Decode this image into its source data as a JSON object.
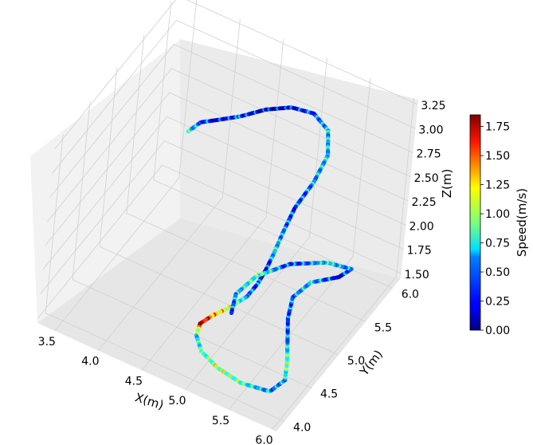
{
  "chart_data": {
    "type": "scatter",
    "projection": "3d",
    "xlabel": "X(m)",
    "ylabel": "Y(m)",
    "zlabel": "Z(m)",
    "xlim": [
      3.3,
      6.05
    ],
    "ylim": [
      3.85,
      6.15
    ],
    "zlim": [
      1.45,
      3.3
    ],
    "x_ticks": [
      "3.5",
      "4.0",
      "4.5",
      "5.0",
      "5.5",
      "6.0"
    ],
    "y_ticks": [
      "4.0",
      "4.5",
      "5.0",
      "5.5",
      "6.0"
    ],
    "z_ticks": [
      "1.50",
      "1.75",
      "2.00",
      "2.25",
      "2.50",
      "2.75",
      "3.00",
      "3.25"
    ],
    "grid": true,
    "colormap": "jet",
    "colorbar": {
      "label": "Speed(m/s)",
      "range": [
        0.0,
        1.85
      ],
      "ticks": [
        "0.00",
        "0.25",
        "0.50",
        "0.75",
        "1.00",
        "1.25",
        "1.50",
        "1.75"
      ]
    },
    "series": [
      {
        "points": [
          {
            "x": 4.1,
            "y": 5.1,
            "z": 2.9,
            "speed": 0.7
          },
          {
            "x": 4.2,
            "y": 5.15,
            "z": 3.0,
            "speed": 0.4
          },
          {
            "x": 4.35,
            "y": 5.2,
            "z": 3.05,
            "speed": 0.2
          },
          {
            "x": 4.55,
            "y": 5.3,
            "z": 3.1,
            "speed": 0.3
          },
          {
            "x": 4.75,
            "y": 5.45,
            "z": 3.15,
            "speed": 0.15
          },
          {
            "x": 4.95,
            "y": 5.6,
            "z": 3.15,
            "speed": 0.2
          },
          {
            "x": 5.15,
            "y": 5.7,
            "z": 3.1,
            "speed": 0.4
          },
          {
            "x": 5.3,
            "y": 5.75,
            "z": 2.95,
            "speed": 0.5
          },
          {
            "x": 5.35,
            "y": 5.7,
            "z": 2.75,
            "speed": 0.6
          },
          {
            "x": 5.3,
            "y": 5.55,
            "z": 2.55,
            "speed": 0.5
          },
          {
            "x": 5.2,
            "y": 5.4,
            "z": 2.35,
            "speed": 0.3
          },
          {
            "x": 5.15,
            "y": 5.3,
            "z": 2.15,
            "speed": 0.4
          },
          {
            "x": 5.1,
            "y": 5.25,
            "z": 1.95,
            "speed": 0.6
          },
          {
            "x": 5.05,
            "y": 5.2,
            "z": 1.78,
            "speed": 0.2
          },
          {
            "x": 5.0,
            "y": 5.15,
            "z": 1.65,
            "speed": 0.3
          },
          {
            "x": 4.95,
            "y": 5.05,
            "z": 1.57,
            "speed": 0.5
          },
          {
            "x": 4.85,
            "y": 4.9,
            "z": 1.52,
            "speed": 1.0
          },
          {
            "x": 4.75,
            "y": 4.75,
            "z": 1.5,
            "speed": 1.3
          },
          {
            "x": 4.7,
            "y": 4.6,
            "z": 1.5,
            "speed": 1.8
          },
          {
            "x": 4.75,
            "y": 4.45,
            "z": 1.5,
            "speed": 0.6
          },
          {
            "x": 4.9,
            "y": 4.3,
            "z": 1.5,
            "speed": 0.7
          },
          {
            "x": 5.15,
            "y": 4.2,
            "z": 1.5,
            "speed": 1.0
          },
          {
            "x": 5.45,
            "y": 4.15,
            "z": 1.5,
            "speed": 0.8
          },
          {
            "x": 5.75,
            "y": 4.2,
            "z": 1.5,
            "speed": 0.4
          },
          {
            "x": 5.8,
            "y": 4.4,
            "z": 1.5,
            "speed": 0.5
          },
          {
            "x": 5.7,
            "y": 4.6,
            "z": 1.5,
            "speed": 0.9
          },
          {
            "x": 5.55,
            "y": 4.85,
            "z": 1.5,
            "speed": 0.5
          },
          {
            "x": 5.4,
            "y": 5.1,
            "z": 1.5,
            "speed": 0.3
          },
          {
            "x": 5.3,
            "y": 5.35,
            "z": 1.5,
            "speed": 0.4
          },
          {
            "x": 5.35,
            "y": 5.6,
            "z": 1.5,
            "speed": 0.6
          },
          {
            "x": 5.55,
            "y": 5.8,
            "z": 1.5,
            "speed": 0.2
          },
          {
            "x": 5.6,
            "y": 5.95,
            "z": 1.5,
            "speed": 0.4
          },
          {
            "x": 5.35,
            "y": 5.9,
            "z": 1.5,
            "speed": 0.6
          },
          {
            "x": 5.05,
            "y": 5.7,
            "z": 1.5,
            "speed": 0.3
          },
          {
            "x": 4.85,
            "y": 5.4,
            "z": 1.5,
            "speed": 0.8
          },
          {
            "x": 4.8,
            "y": 5.1,
            "z": 1.5,
            "speed": 0.5
          },
          {
            "x": 4.9,
            "y": 4.85,
            "z": 1.5,
            "speed": 0.3
          }
        ]
      }
    ]
  }
}
